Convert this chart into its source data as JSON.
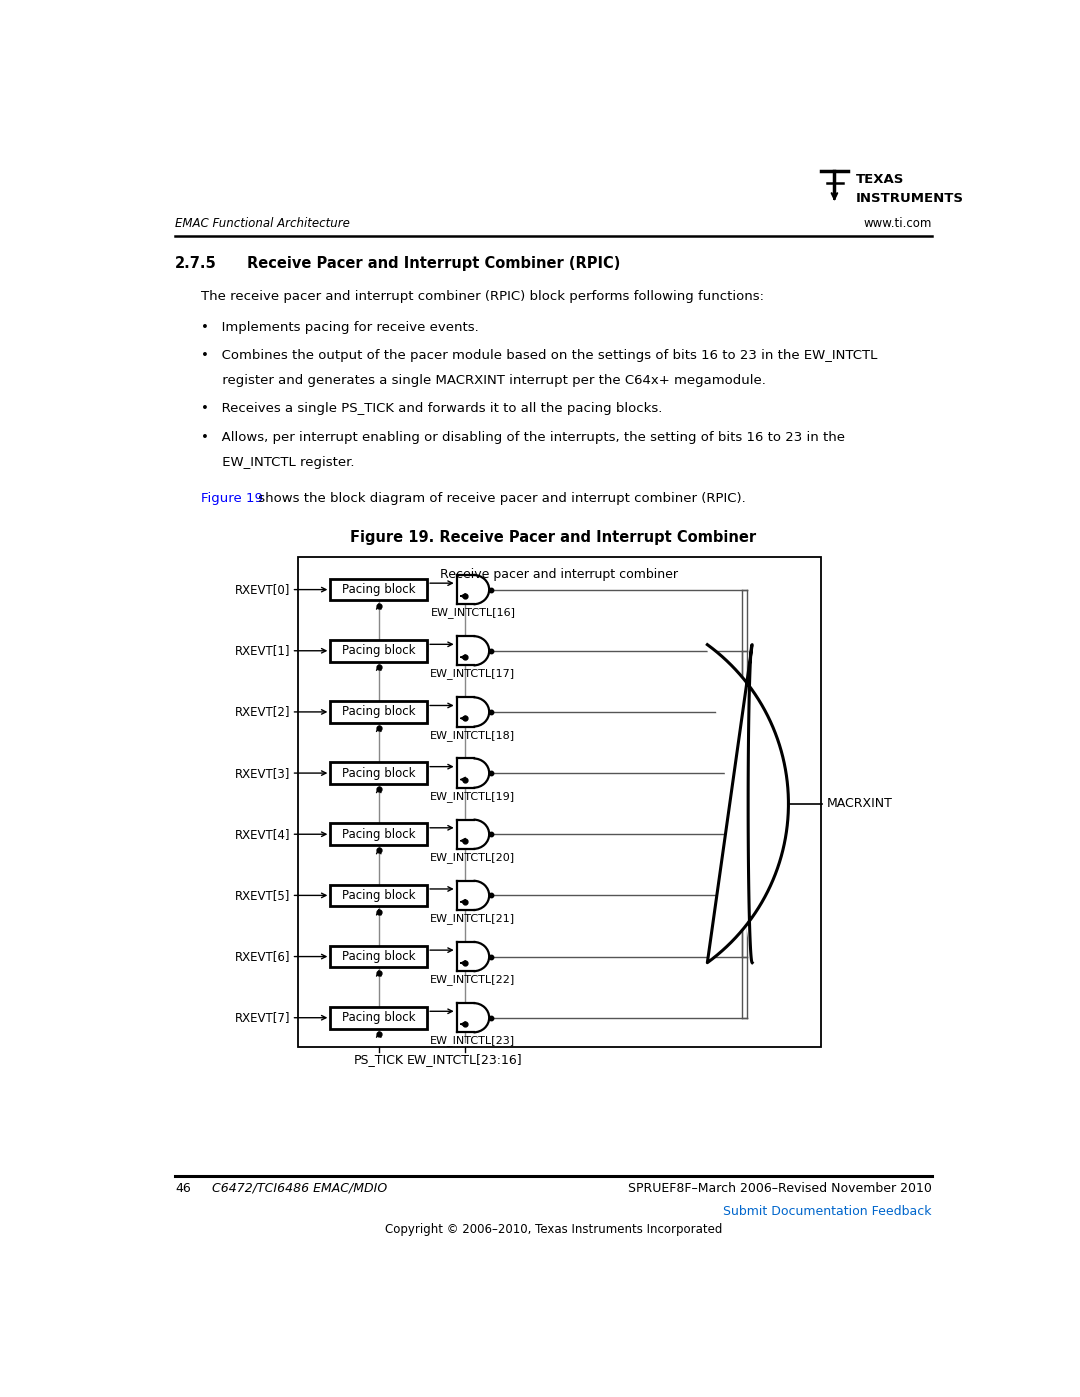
{
  "page_width": 10.8,
  "page_height": 13.97,
  "bg_color": "#ffffff",
  "header_italic_left": "EMAC Functional Architecture",
  "header_right": "www.ti.com",
  "section_number": "2.7.5",
  "section_title": "Receive Pacer and Interrupt Combiner (RPIC)",
  "body_line0": "The receive pacer and interrupt combiner (RPIC) block performs following functions:",
  "bullet1": "•   Implements pacing for receive events.",
  "bullet2a": "•   Combines the output of the pacer module based on the settings of bits 16 to 23 in the EW_INTCTL",
  "bullet2b": "     register and generates a single MACRXINT interrupt per the C64x+ megamodule.",
  "bullet3": "•   Receives a single PS_TICK and forwards it to all the pacing blocks.",
  "bullet4a": "•   Allows, per interrupt enabling or disabling of the interrupts, the setting of bits 16 to 23 in the",
  "bullet4b": "     EW_INTCTL register.",
  "fig_ref_blue": "Figure 19",
  "fig_ref_black": " shows the block diagram of receive pacer and interrupt combiner (RPIC).",
  "figure_title": "Figure 19. Receive Pacer and Interrupt Combiner",
  "outer_box_title": "Receive pacer and interrupt combiner",
  "rxevt_labels": [
    "RXEVT[0]",
    "RXEVT[1]",
    "RXEVT[2]",
    "RXEVT[3]",
    "RXEVT[4]",
    "RXEVT[5]",
    "RXEVT[6]",
    "RXEVT[7]"
  ],
  "ew_labels": [
    "EW_INTCTL[16]",
    "EW_INTCTL[17]",
    "EW_INTCTL[18]",
    "EW_INTCTL[19]",
    "EW_INTCTL[20]",
    "EW_INTCTL[21]",
    "EW_INTCTL[22]",
    "EW_INTCTL[23]"
  ],
  "output_label": "MACRXINT",
  "bottom_label_left": "PS_TICK",
  "bottom_label_right": "EW_INTCTL[23:16]",
  "footer_left_num": "46",
  "footer_left_text": "C6472/TCI6486 EMAC/MDIO",
  "footer_right_text": "SPRUEF8F–March 2006–Revised November 2010",
  "footer_link": "Submit Documentation Feedback",
  "footer_copyright": "Copyright © 2006–2010, Texas Instruments Incorporated"
}
